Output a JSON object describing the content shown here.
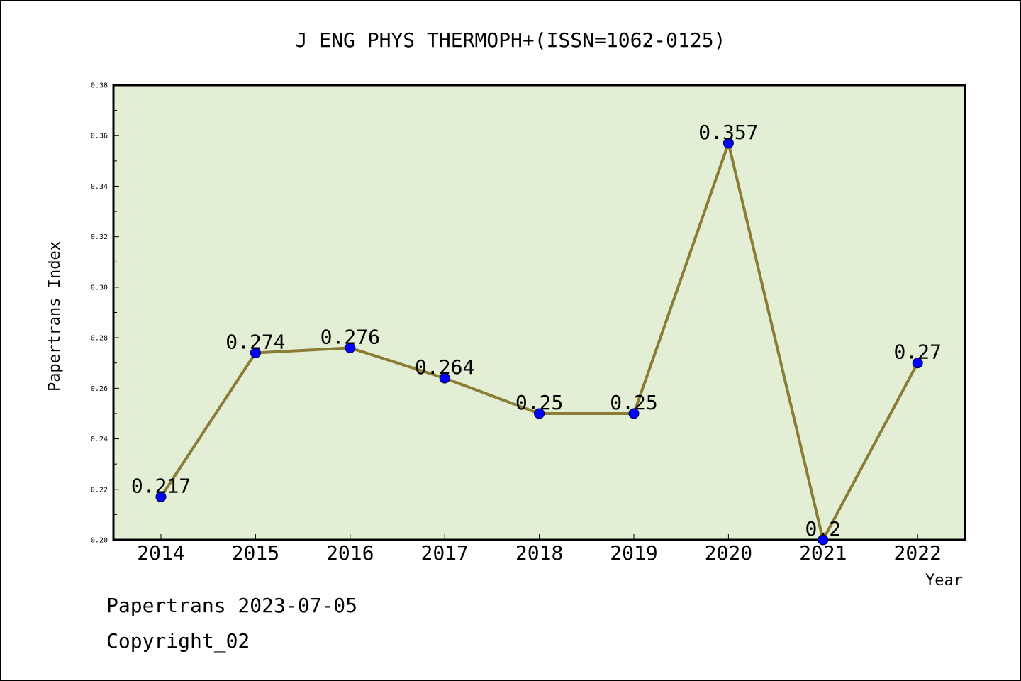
{
  "chart_data": {
    "type": "line",
    "title": "J ENG PHYS THERMOPH+(ISSN=1062-0125)",
    "xlabel": "Year",
    "ylabel": "Papertrans Index",
    "categories": [
      "2014",
      "2015",
      "2016",
      "2017",
      "2018",
      "2019",
      "2020",
      "2021",
      "2022"
    ],
    "series": [
      {
        "values": [
          0.217,
          0.274,
          0.276,
          0.264,
          0.25,
          0.25,
          0.357,
          0.2,
          0.27
        ],
        "data_labels": [
          "0.217",
          "0.274",
          "0.276",
          "0.264",
          "0.25",
          "0.25",
          "0.357",
          "0.2",
          "0.27"
        ]
      }
    ],
    "ylim": [
      0.2,
      0.38
    ],
    "yticks": [
      "0.20",
      "0.22",
      "0.24",
      "0.26",
      "0.28",
      "0.30",
      "0.32",
      "0.34",
      "0.36",
      "0.38"
    ],
    "grid": false,
    "legend": "none",
    "colors": {
      "plot_background": "#e2efd4",
      "line": "#8b7d35",
      "marker": "#0000ff",
      "frame": "#000000"
    }
  },
  "footer": {
    "line1": "Papertrans 2023-07-05",
    "line2": "Copyright_02"
  }
}
